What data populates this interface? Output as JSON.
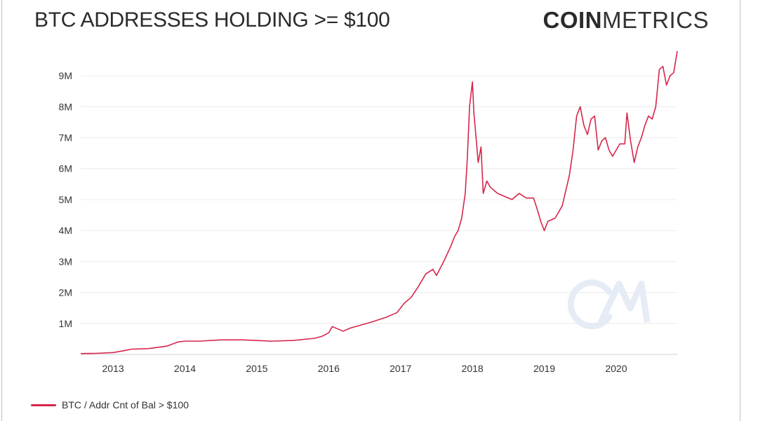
{
  "header": {
    "title": "BTC ADDRESSES HOLDING >= $100",
    "brand_bold": "COIN",
    "brand_light": "METRICS"
  },
  "colors": {
    "series": "#d6264a",
    "grid": "#ececec",
    "watermark": "#e6ecf5"
  },
  "chart_data": {
    "type": "line",
    "title": "BTC ADDRESSES HOLDING >= $100",
    "xlabel": "",
    "ylabel": "",
    "x_ticks": [
      "2013",
      "2014",
      "2015",
      "2016",
      "2017",
      "2018",
      "2019",
      "2020"
    ],
    "y_ticks": [
      "1M",
      "2M",
      "3M",
      "4M",
      "5M",
      "6M",
      "7M",
      "8M",
      "9M"
    ],
    "xlim": [
      2012.55,
      2020.85
    ],
    "ylim": [
      0,
      9500000
    ],
    "grid": true,
    "legend_position": "bottom-left",
    "series": [
      {
        "name": "BTC / Addr Cnt of Bal > $100",
        "x": [
          2012.55,
          2012.75,
          2013.0,
          2013.15,
          2013.25,
          2013.5,
          2013.75,
          2013.9,
          2014.0,
          2014.2,
          2014.5,
          2014.8,
          2015.0,
          2015.2,
          2015.5,
          2015.8,
          2015.9,
          2016.0,
          2016.05,
          2016.2,
          2016.3,
          2016.45,
          2016.6,
          2016.8,
          2016.95,
          2017.05,
          2017.15,
          2017.25,
          2017.35,
          2017.45,
          2017.5,
          2017.6,
          2017.7,
          2017.75,
          2017.8,
          2017.85,
          2017.9,
          2017.93,
          2017.96,
          2018.0,
          2018.02,
          2018.05,
          2018.08,
          2018.12,
          2018.15,
          2018.2,
          2018.25,
          2018.35,
          2018.45,
          2018.55,
          2018.65,
          2018.75,
          2018.85,
          2018.9,
          2018.95,
          2019.0,
          2019.05,
          2019.15,
          2019.25,
          2019.35,
          2019.4,
          2019.45,
          2019.5,
          2019.55,
          2019.6,
          2019.65,
          2019.7,
          2019.75,
          2019.8,
          2019.85,
          2019.9,
          2019.95,
          2020.05,
          2020.12,
          2020.15,
          2020.2,
          2020.25,
          2020.3,
          2020.35,
          2020.4,
          2020.45,
          2020.5,
          2020.55,
          2020.6,
          2020.65,
          2020.7,
          2020.75,
          2020.8,
          2020.85
        ],
        "y": [
          30000,
          35000,
          60000,
          120000,
          170000,
          190000,
          270000,
          400000,
          430000,
          430000,
          470000,
          470000,
          450000,
          430000,
          450000,
          520000,
          580000,
          700000,
          900000,
          750000,
          850000,
          950000,
          1050000,
          1200000,
          1350000,
          1650000,
          1850000,
          2200000,
          2600000,
          2750000,
          2550000,
          3000000,
          3500000,
          3800000,
          4000000,
          4400000,
          5200000,
          6400000,
          8000000,
          8800000,
          7800000,
          7000000,
          6200000,
          6700000,
          5200000,
          5600000,
          5400000,
          5200000,
          5100000,
          5000000,
          5200000,
          5050000,
          5050000,
          4700000,
          4300000,
          4000000,
          4300000,
          4400000,
          4800000,
          5800000,
          6600000,
          7700000,
          8000000,
          7400000,
          7100000,
          7600000,
          7700000,
          6600000,
          6900000,
          7000000,
          6600000,
          6400000,
          6800000,
          6800000,
          7800000,
          6900000,
          6200000,
          6700000,
          7000000,
          7400000,
          7700000,
          7600000,
          8000000,
          9200000,
          9300000,
          8700000,
          9000000,
          9100000,
          9800000
        ]
      }
    ]
  }
}
